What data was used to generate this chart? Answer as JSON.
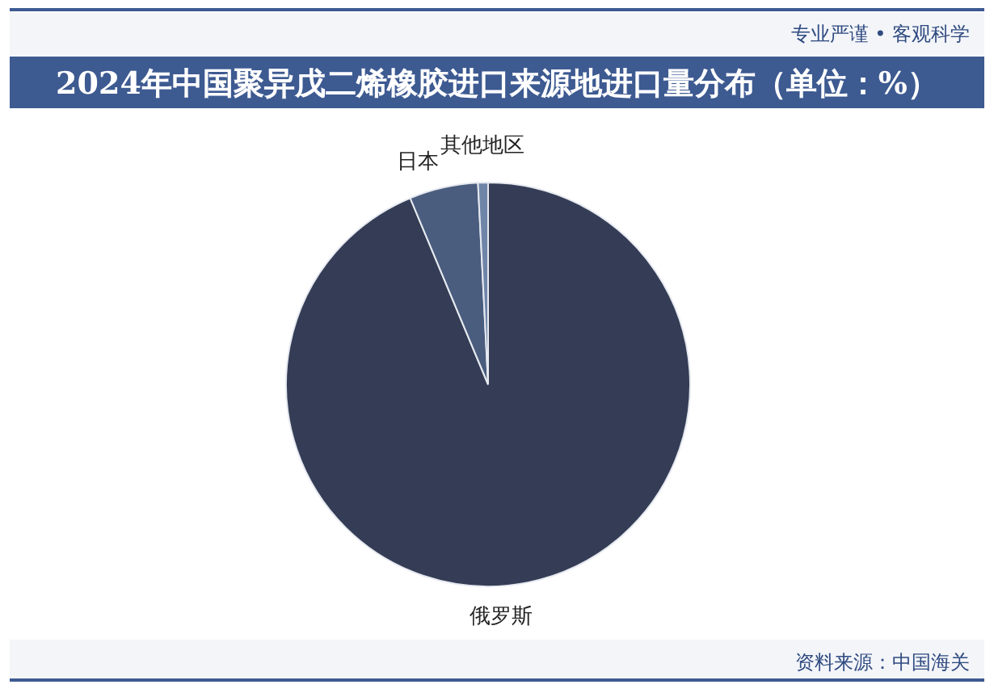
{
  "chart_data": {
    "type": "pie",
    "title": "2024年中国聚异戊二烯橡胶进口来源地进口量分布（单位：%）",
    "categories": [
      "俄罗斯",
      "日本",
      "其他地区"
    ],
    "values": [
      93.7,
      5.5,
      0.8
    ],
    "colors": [
      "#343d55",
      "#4a5d7e",
      "#6f85a8"
    ],
    "annotations": [
      "专业严谨 • 客观科学",
      "资料来源：中国海关"
    ]
  }
}
